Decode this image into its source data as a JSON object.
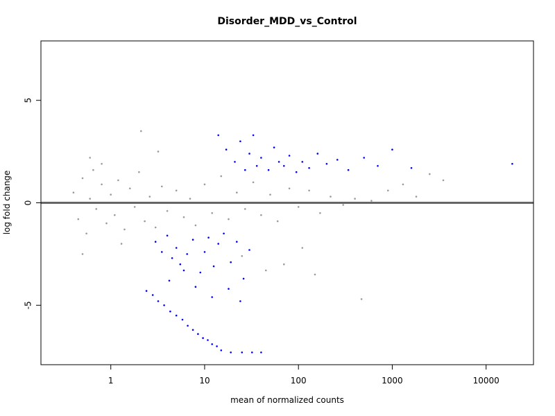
{
  "chart_data": {
    "type": "scatter",
    "title": "Disorder_MDD_vs_Control",
    "xlabel": "mean of normalized counts",
    "ylabel": "log fold change",
    "x_scale": "log10",
    "xlim": [
      0.18,
      32000
    ],
    "ylim": [
      -7.9,
      7.9
    ],
    "x_ticks": [
      1,
      10,
      100,
      1000,
      10000
    ],
    "x_tick_labels": [
      "1",
      "10",
      "100",
      "1000",
      "10000"
    ],
    "y_ticks": [
      -5,
      0,
      5
    ],
    "y_tick_labels": [
      "-5",
      "0",
      "5"
    ],
    "reference_line_y": 0,
    "colors": {
      "not_significant": "#9a9a9a",
      "significant": "#0000ff",
      "reference_line": "#666666",
      "frame": "#000000"
    },
    "series": [
      {
        "role": "not_significant",
        "marker": "dot",
        "points": [
          [
            0.4,
            0.5
          ],
          [
            0.45,
            -0.8
          ],
          [
            0.5,
            1.2
          ],
          [
            0.55,
            -1.5
          ],
          [
            0.6,
            0.2
          ],
          [
            0.65,
            1.6
          ],
          [
            0.7,
            -0.3
          ],
          [
            0.8,
            0.9
          ],
          [
            0.9,
            -1.0
          ],
          [
            1.0,
            0.4
          ],
          [
            1.1,
            -0.6
          ],
          [
            1.2,
            1.1
          ],
          [
            1.4,
            -1.3
          ],
          [
            1.6,
            0.7
          ],
          [
            1.8,
            -0.2
          ],
          [
            2.0,
            1.5
          ],
          [
            2.3,
            -0.9
          ],
          [
            2.6,
            0.3
          ],
          [
            3.0,
            -1.2
          ],
          [
            3.5,
            0.8
          ],
          [
            4.0,
            -0.4
          ],
          [
            5.0,
            0.6
          ],
          [
            6.0,
            -0.7
          ],
          [
            7.0,
            0.2
          ],
          [
            8.0,
            -1.1
          ],
          [
            10.0,
            0.9
          ],
          [
            12.0,
            -0.5
          ],
          [
            15.0,
            1.3
          ],
          [
            18.0,
            -0.8
          ],
          [
            22.0,
            0.5
          ],
          [
            27.0,
            -0.3
          ],
          [
            33.0,
            1.0
          ],
          [
            40.0,
            -0.6
          ],
          [
            50.0,
            0.4
          ],
          [
            60.0,
            -0.9
          ],
          [
            80.0,
            0.7
          ],
          [
            100.0,
            -0.2
          ],
          [
            130.0,
            0.6
          ],
          [
            170.0,
            -0.5
          ],
          [
            220.0,
            0.3
          ],
          [
            300.0,
            -0.1
          ],
          [
            400.0,
            0.2
          ],
          [
            600.0,
            0.1
          ],
          [
            900.0,
            0.6
          ],
          [
            1300.0,
            0.9
          ],
          [
            1800.0,
            0.3
          ],
          [
            2500.0,
            1.4
          ],
          [
            3500.0,
            1.1
          ],
          [
            0.5,
            -2.5
          ],
          [
            0.8,
            1.9
          ],
          [
            1.3,
            -2.0
          ],
          [
            2.1,
            3.5
          ],
          [
            3.2,
            2.5
          ],
          [
            0.6,
            2.2
          ],
          [
            25.0,
            -2.6
          ],
          [
            45.0,
            -3.3
          ],
          [
            70.0,
            -3.0
          ],
          [
            110.0,
            -2.2
          ],
          [
            150.0,
            -3.5
          ],
          [
            470.0,
            -4.7
          ]
        ]
      },
      {
        "role": "significant",
        "marker": "dot",
        "points": [
          [
            14.0,
            3.3
          ],
          [
            17.0,
            2.6
          ],
          [
            21.0,
            2.0
          ],
          [
            24.0,
            3.0
          ],
          [
            27.0,
            1.6
          ],
          [
            30.0,
            2.4
          ],
          [
            33.0,
            3.3
          ],
          [
            36.0,
            1.8
          ],
          [
            40.0,
            2.2
          ],
          [
            48.0,
            1.6
          ],
          [
            55.0,
            2.7
          ],
          [
            62.0,
            2.0
          ],
          [
            70.0,
            1.8
          ],
          [
            80.0,
            2.3
          ],
          [
            95.0,
            1.5
          ],
          [
            110.0,
            2.0
          ],
          [
            130.0,
            1.7
          ],
          [
            160.0,
            2.4
          ],
          [
            200.0,
            1.9
          ],
          [
            260.0,
            2.1
          ],
          [
            340.0,
            1.6
          ],
          [
            500.0,
            2.2
          ],
          [
            700.0,
            1.8
          ],
          [
            1000.0,
            2.6
          ],
          [
            1600.0,
            1.7
          ],
          [
            19000.0,
            1.9
          ],
          [
            3.0,
            -1.9
          ],
          [
            3.5,
            -2.4
          ],
          [
            4.0,
            -1.6
          ],
          [
            4.5,
            -2.7
          ],
          [
            5.0,
            -2.2
          ],
          [
            5.5,
            -3.0
          ],
          [
            6.5,
            -2.5
          ],
          [
            7.5,
            -1.8
          ],
          [
            9.0,
            -3.4
          ],
          [
            10.0,
            -2.4
          ],
          [
            11.0,
            -1.7
          ],
          [
            12.5,
            -3.1
          ],
          [
            14.0,
            -2.0
          ],
          [
            16.0,
            -1.5
          ],
          [
            19.0,
            -2.9
          ],
          [
            22.0,
            -1.9
          ],
          [
            26.0,
            -3.7
          ],
          [
            30.0,
            -2.3
          ],
          [
            8.0,
            -4.1
          ],
          [
            12.0,
            -4.6
          ],
          [
            18.0,
            -4.2
          ],
          [
            24.0,
            -4.8
          ],
          [
            4.2,
            -3.8
          ],
          [
            6.0,
            -3.3
          ],
          [
            2.4,
            -4.3
          ],
          [
            2.8,
            -4.5
          ],
          [
            3.2,
            -4.8
          ],
          [
            3.7,
            -5.0
          ],
          [
            4.3,
            -5.3
          ],
          [
            5.0,
            -5.5
          ],
          [
            5.8,
            -5.7
          ],
          [
            6.6,
            -6.0
          ],
          [
            7.5,
            -6.2
          ],
          [
            8.5,
            -6.4
          ],
          [
            9.6,
            -6.6
          ],
          [
            10.8,
            -6.7
          ],
          [
            12.0,
            -6.9
          ],
          [
            13.5,
            -7.0
          ],
          [
            15.0,
            -7.2
          ],
          [
            19.0,
            -7.3
          ],
          [
            25.0,
            -7.3
          ],
          [
            32.0,
            -7.3
          ],
          [
            40.0,
            -7.3
          ]
        ]
      }
    ]
  }
}
